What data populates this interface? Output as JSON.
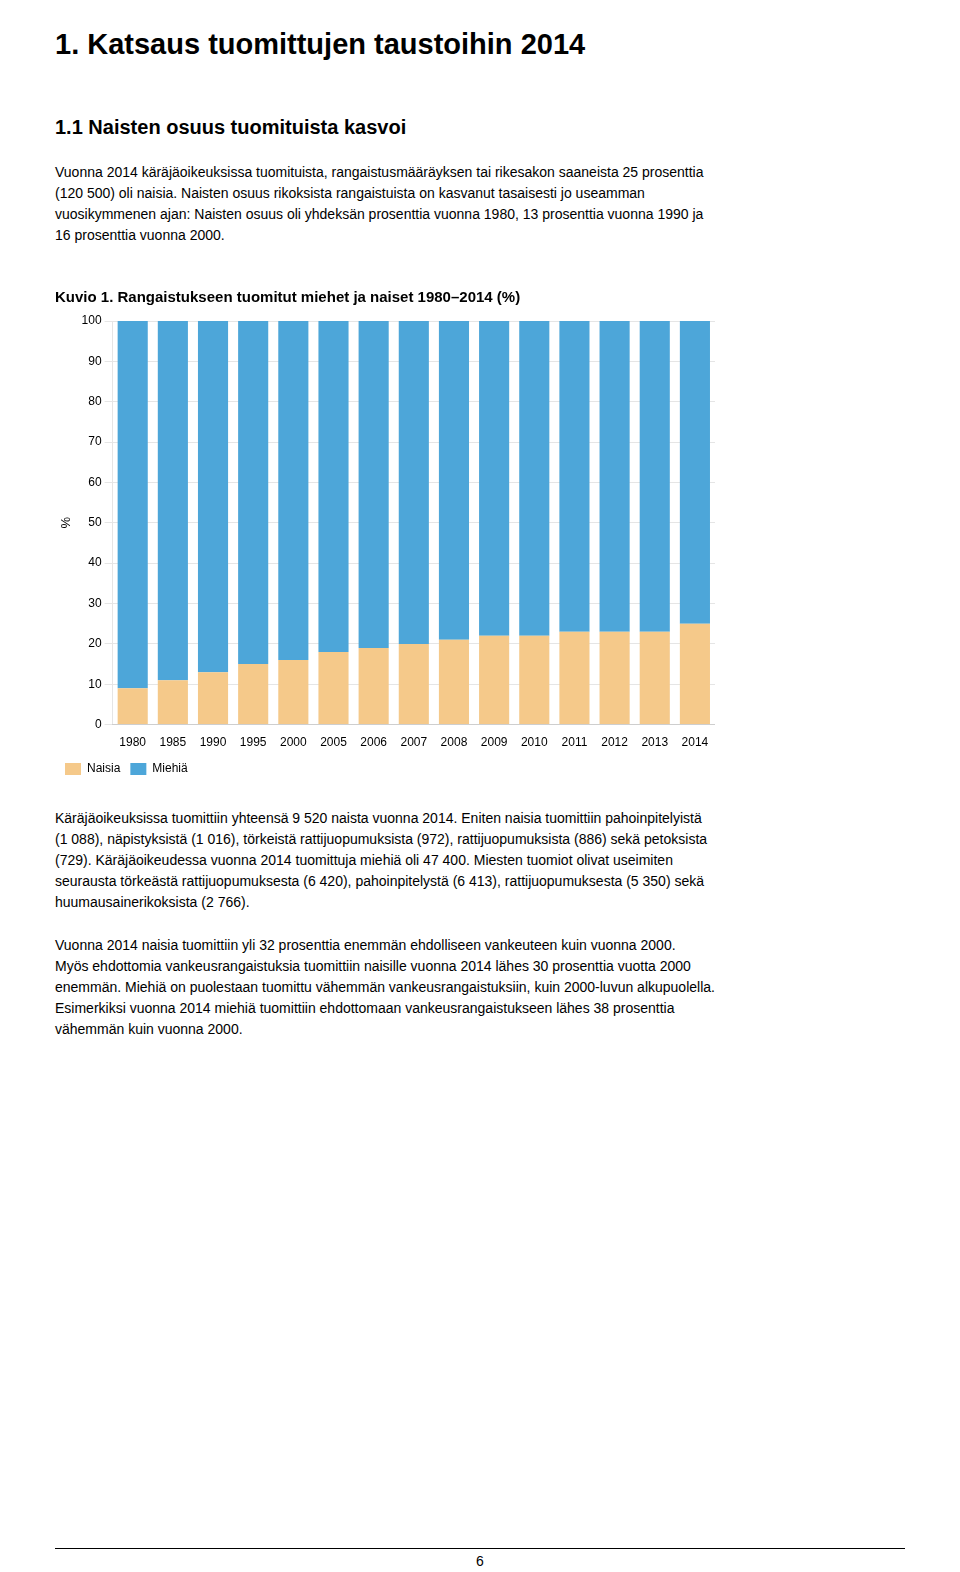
{
  "page_title": "1. Katsaus tuomittujen taustoihin 2014",
  "section_title": "1.1 Naisten osuus tuomituista kasvoi",
  "text_above": [
    [
      "Vuonna 2014 käräjäoikeuksissa tuomituista, rangaistusmääräyksen tai rikesakon saaneista 25 prosenttia",
      "(120 500) oli naisia. Naisten osuus rikoksista rangaistuista on kasvanut tasaisesti jo useamman",
      "vuosikymmenen ajan: Naisten osuus oli yhdeksän prosenttia vuonna 1980, 13 prosenttia vuonna 1990 ja",
      "16 prosenttia vuonna 2000."
    ]
  ],
  "text_below": [
    [
      "Käräjäoikeuksissa tuomittiin yhteensä 9 520 naista vuonna 2014. Eniten naisia tuomittiin pahoinpitelyistä",
      "(1 088), näpistyksistä (1 016), törkeistä rattijuopumuksista (972), rattijuopumuksista (886) sekä petoksista",
      "(729). Käräjäoikeudessa vuonna 2014 tuomittuja miehiä oli 47 400. Miesten tuomiot olivat useimiten",
      "seurausta törkeästä rattijuopumuksesta (6 420), pahoinpitelystä (6 413), rattijuopumuksesta (5 350) sekä",
      "huumausainerikoksista (2 766)."
    ],
    [
      "Vuonna 2014 naisia tuomittiin yli 32 prosenttia enemmän ehdolliseen vankeuteen kuin vuonna 2000.",
      "Myös ehdottomia vankeusrangaistuksia tuomittiin naisille vuonna 2014 lähes 30 prosenttia vuotta 2000",
      "enemmän. Miehiä on puolestaan tuomittu vähemmän vankeusrangaistuksiin, kuin 2000-luvun alkupuolella.",
      "Esimerkiksi vuonna 2014 miehiä tuomittiin ehdottomaan vankeusrangaistukseen lähes 38 prosenttia",
      "vähemmän kuin vuonna 2000."
    ]
  ],
  "page_number": "6",
  "chart_data": {
    "type": "bar",
    "title": "Kuvio 1. Rangaistukseen tuomitut miehet ja naiset 1980–2014 (%)",
    "ylabel": "%",
    "categories": [
      "1980",
      "1985",
      "1990",
      "1995",
      "2000",
      "2005",
      "2006",
      "2007",
      "2008",
      "2009",
      "2010",
      "2011",
      "2012",
      "2013",
      "2014"
    ],
    "series": [
      {
        "name": "Naisia",
        "color": "#f5c98a",
        "values": [
          9,
          11,
          13,
          15,
          16,
          18,
          19,
          20,
          21,
          22,
          22,
          23,
          23,
          23,
          25
        ]
      },
      {
        "name": "Miehiä",
        "color": "#4da6d9",
        "values": [
          91,
          89,
          87,
          85,
          84,
          82,
          81,
          80,
          79,
          78,
          78,
          77,
          77,
          77,
          75
        ]
      }
    ],
    "stacked": true,
    "ylim": [
      0,
      100
    ],
    "yticks": [
      0,
      10,
      20,
      30,
      40,
      50,
      60,
      70,
      80,
      90,
      100
    ],
    "grid": true,
    "legend": "bottom"
  }
}
